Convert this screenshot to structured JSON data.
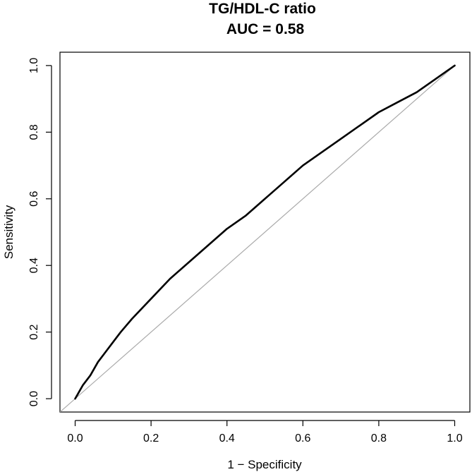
{
  "chart_data": {
    "type": "line",
    "title": "TG/HDL-C ratio",
    "subtitle": "AUC = 0.58",
    "xlabel": "1 − Specificity",
    "ylabel": "Sensitivity",
    "xlim": [
      -0.04,
      1.04
    ],
    "ylim": [
      -0.04,
      1.04
    ],
    "xticks": [
      0.0,
      0.2,
      0.4,
      0.6,
      0.8,
      1.0
    ],
    "xtick_labels": [
      "0.0",
      "0.2",
      "0.4",
      "0.6",
      "0.8",
      "1.0"
    ],
    "yticks": [
      0.0,
      0.2,
      0.4,
      0.6,
      0.8,
      1.0
    ],
    "ytick_labels": [
      "0.0",
      "0.2",
      "0.4",
      "0.6",
      "0.8",
      "1.0"
    ],
    "grid": false,
    "legend": "none",
    "series": [
      {
        "color": "#000000",
        "x": [
          0.0,
          0.01,
          0.02,
          0.04,
          0.06,
          0.08,
          0.1,
          0.12,
          0.15,
          0.2,
          0.25,
          0.3,
          0.35,
          0.4,
          0.45,
          0.5,
          0.55,
          0.6,
          0.65,
          0.7,
          0.75,
          0.8,
          0.85,
          0.9,
          0.95,
          1.0
        ],
        "y": [
          0.0,
          0.02,
          0.04,
          0.07,
          0.11,
          0.14,
          0.17,
          0.2,
          0.24,
          0.3,
          0.36,
          0.41,
          0.46,
          0.51,
          0.55,
          0.6,
          0.65,
          0.7,
          0.74,
          0.78,
          0.82,
          0.86,
          0.89,
          0.92,
          0.96,
          1.0
        ]
      }
    ],
    "reference_line": {
      "color": "#aaaaaa",
      "x": [
        -0.04,
        1.0
      ],
      "y": [
        -0.04,
        1.0
      ]
    }
  }
}
